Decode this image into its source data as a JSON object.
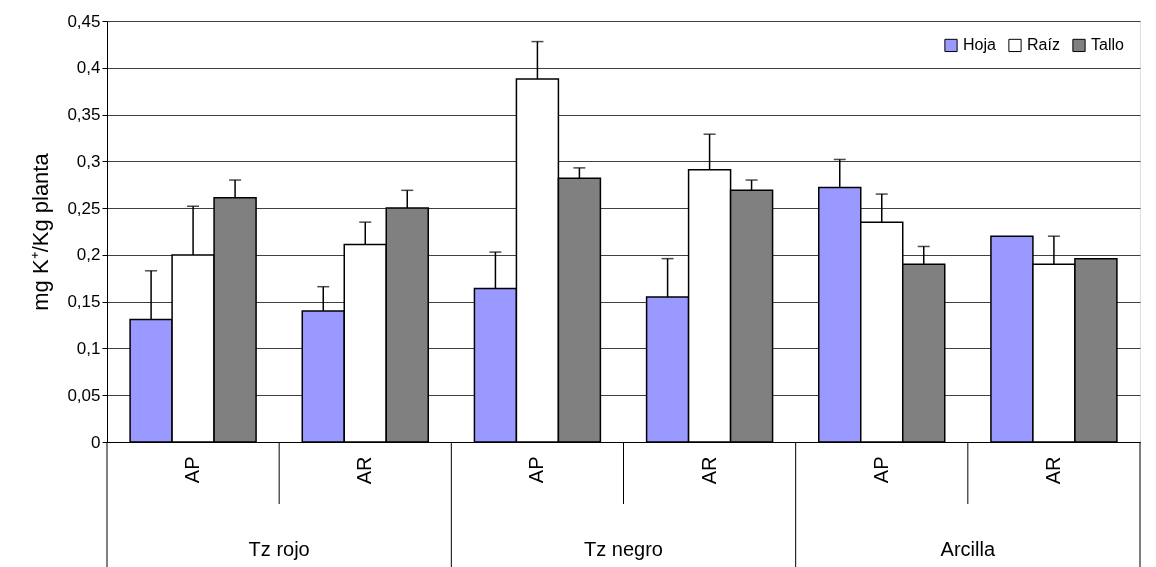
{
  "chart_data": {
    "type": "bar",
    "ylabel": "mg K⁺/Kg planta",
    "categories": [
      "AP",
      "AR",
      "AP",
      "AR",
      "AP",
      "AR"
    ],
    "annotations": [
      "Tz rojo",
      "Tz negro",
      "Arcilla"
    ],
    "series": [
      {
        "name": "Hoja",
        "color": "#9999ff",
        "values": [
          0.131,
          0.14,
          0.164,
          0.155,
          0.272,
          0.22
        ],
        "errors": [
          0.052,
          0.026,
          0.039,
          0.041,
          0.03,
          null
        ]
      },
      {
        "name": "Raíz",
        "color": "#ffffff",
        "values": [
          0.2,
          0.211,
          0.388,
          0.291,
          0.235,
          0.19
        ],
        "errors": [
          0.052,
          0.024,
          0.04,
          0.038,
          0.03,
          0.03
        ]
      },
      {
        "name": "Tallo",
        "color": "#808080",
        "values": [
          0.261,
          0.25,
          0.282,
          0.269,
          0.19,
          0.196
        ],
        "errors": [
          0.019,
          0.019,
          0.011,
          0.011,
          0.019,
          null
        ]
      }
    ],
    "ylim": [
      0,
      0.45
    ],
    "yticks": [
      0,
      {
        "value": 0.05,
        "label": "0,05"
      },
      {
        "value": 0.1,
        "label": "0,1"
      },
      {
        "value": 0.15,
        "label": "0,15"
      },
      {
        "value": 0.2,
        "label": "0,2"
      },
      {
        "value": 0.25,
        "label": "0,25"
      },
      {
        "value": 0.3,
        "label": "0,3"
      },
      {
        "value": 0.35,
        "label": "0,35"
      },
      {
        "value": 0.4,
        "label": "0,4"
      },
      {
        "value": 0.45,
        "label": "0,45"
      }
    ],
    "grid": "y",
    "legend": "top right"
  }
}
